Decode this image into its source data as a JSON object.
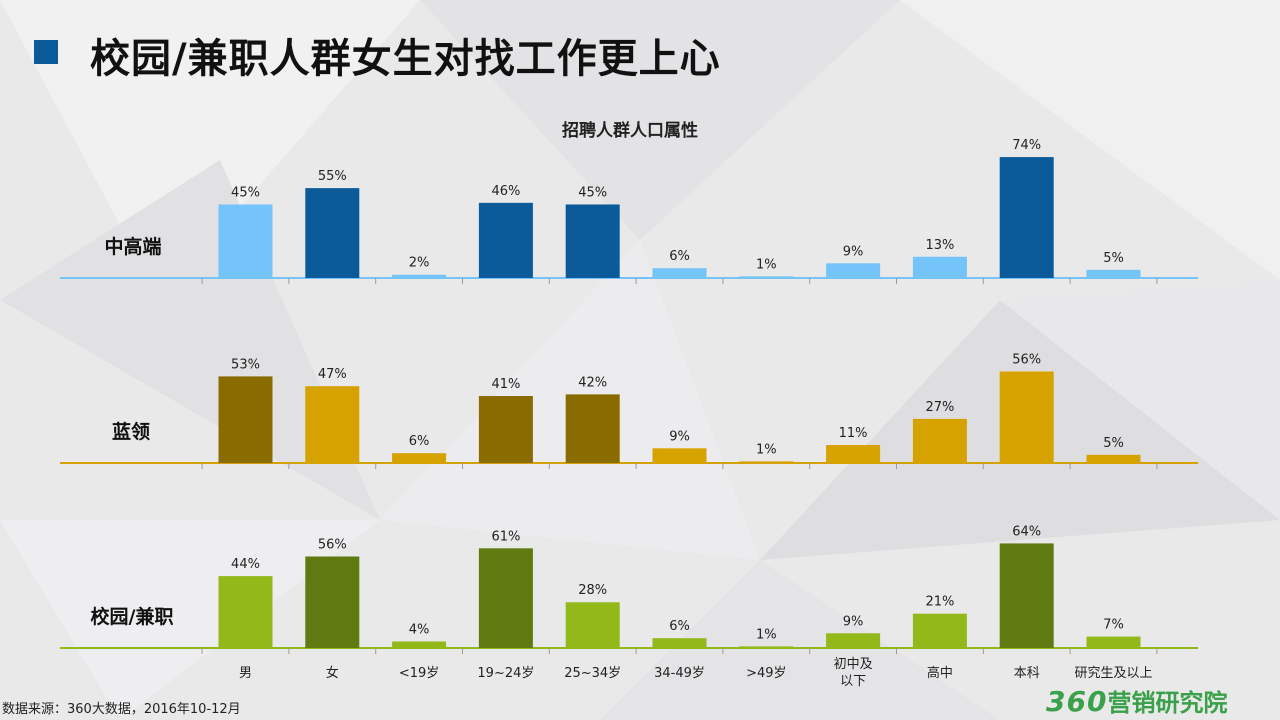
{
  "page": {
    "title": "校园/兼职人群女生对找工作更上心",
    "source": "数据来源：360大数据，2016年10-12月",
    "brand_number": "360",
    "brand_text": "营销研究院"
  },
  "chart_data": {
    "type": "bar",
    "title": "招聘人群人口属性",
    "categories": [
      "男",
      "女",
      "<19岁",
      "19~24岁",
      "25~34岁",
      "34-49岁",
      ">49岁",
      "初中及\n以下",
      "高中",
      "本科",
      "研究生及以上"
    ],
    "series": [
      {
        "name": "中高端",
        "values": [
          45,
          55,
          2,
          46,
          45,
          6,
          1,
          9,
          13,
          74,
          5
        ],
        "labels": [
          "45%",
          "55%",
          "2%",
          "46%",
          "45%",
          "6%",
          "1%",
          "9%",
          "13%",
          "74%",
          "5%"
        ],
        "highlight": [
          false,
          true,
          false,
          true,
          true,
          false,
          false,
          false,
          false,
          true,
          false
        ],
        "color_light": "#74c4f9",
        "color_dark": "#0b5a9a"
      },
      {
        "name": "蓝领",
        "values": [
          53,
          47,
          6,
          41,
          42,
          9,
          1,
          11,
          27,
          56,
          5
        ],
        "labels": [
          "53%",
          "47%",
          "6%",
          "41%",
          "42%",
          "9%",
          "1%",
          "11%",
          "27%",
          "56%",
          "5%"
        ],
        "highlight": [
          true,
          false,
          false,
          true,
          true,
          false,
          false,
          false,
          false,
          false,
          false
        ],
        "color_light": "#d6a200",
        "color_dark": "#8a6b00"
      },
      {
        "name": "校园/兼职",
        "values": [
          44,
          56,
          4,
          61,
          28,
          6,
          1,
          9,
          21,
          64,
          7
        ],
        "labels": [
          "44%",
          "56%",
          "4%",
          "61%",
          "28%",
          "6%",
          "1%",
          "9%",
          "21%",
          "64%",
          "7%"
        ],
        "highlight": [
          false,
          true,
          false,
          true,
          false,
          false,
          false,
          false,
          false,
          true,
          false
        ],
        "color_light": "#93b81a",
        "color_dark": "#5e7a10"
      }
    ],
    "value_unit": "%",
    "grid": false,
    "legend": "row labels at left"
  }
}
